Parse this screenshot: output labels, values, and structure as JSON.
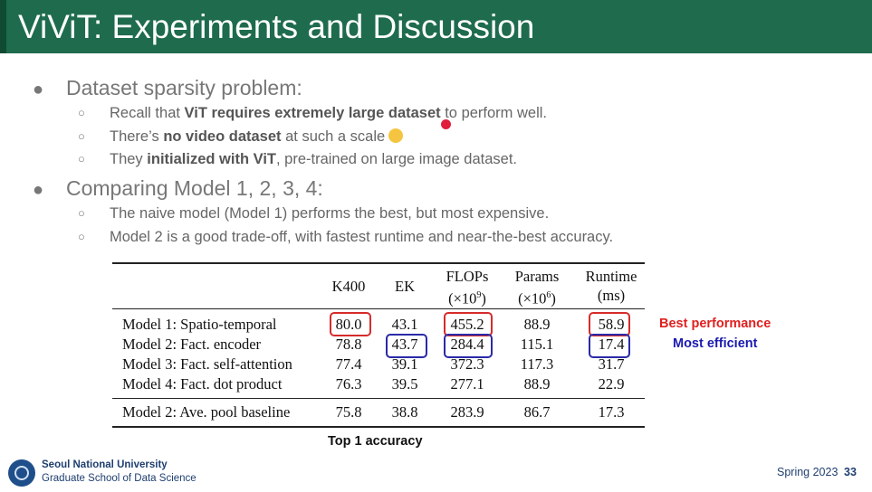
{
  "slide": {
    "title": "ViViT: Experiments and Discussion",
    "bullets": [
      {
        "text": "Dataset sparsity problem:",
        "sub": [
          {
            "pre": "Recall that ",
            "bold": "ViT requires extremely large dataset",
            "post": " to perform well."
          },
          {
            "pre": "There’s ",
            "bold": "no video dataset",
            "post": " at such a scale",
            "emoji": "worried-face-icon"
          },
          {
            "pre": "They ",
            "bold": "initialized with ViT",
            "post": ", pre-trained on large image dataset."
          }
        ]
      },
      {
        "text": "Comparing Model 1, 2, 3, 4:",
        "sub": [
          {
            "pre": "The naive model (Model 1) performs the best, but most expensive.",
            "bold": "",
            "post": ""
          },
          {
            "pre": "Model 2 is a good trade-off, with fastest runtime and near-the-best accuracy.",
            "bold": "",
            "post": ""
          }
        ]
      }
    ]
  },
  "table": {
    "headers": [
      "",
      "K400",
      "EK",
      "FLOPs",
      "Params",
      "Runtime"
    ],
    "headers_sub": [
      "",
      "",
      "",
      "(×10",
      "(×10",
      "(ms)"
    ],
    "headers_exp": [
      "",
      "",
      "",
      "9",
      "6",
      ""
    ],
    "rows": [
      [
        "Model 1: Spatio-temporal",
        "80.0",
        "43.1",
        "455.2",
        "88.9",
        "58.9"
      ],
      [
        "Model 2: Fact. encoder",
        "78.8",
        "43.7",
        "284.4",
        "115.1",
        "17.4"
      ],
      [
        "Model 3: Fact. self-attention",
        "77.4",
        "39.1",
        "372.3",
        "117.3",
        "31.7"
      ],
      [
        "Model 4: Fact. dot product",
        "76.3",
        "39.5",
        "277.1",
        "88.9",
        "22.9"
      ],
      [
        "Model 2: Ave. pool baseline",
        "75.8",
        "38.8",
        "283.9",
        "86.7",
        "17.3"
      ]
    ],
    "annotations": {
      "best": "Best performance",
      "efficient": "Most efficient",
      "caption": "Top 1 accuracy"
    },
    "colors": {
      "best": "#e02020",
      "efficient": "#1a1ab0"
    }
  },
  "footer": {
    "university": "Seoul National University",
    "school": "Graduate School of Data Science",
    "term": "Spring 2023",
    "page": "33"
  },
  "theme": {
    "title_bar": "#1e6b4d"
  }
}
